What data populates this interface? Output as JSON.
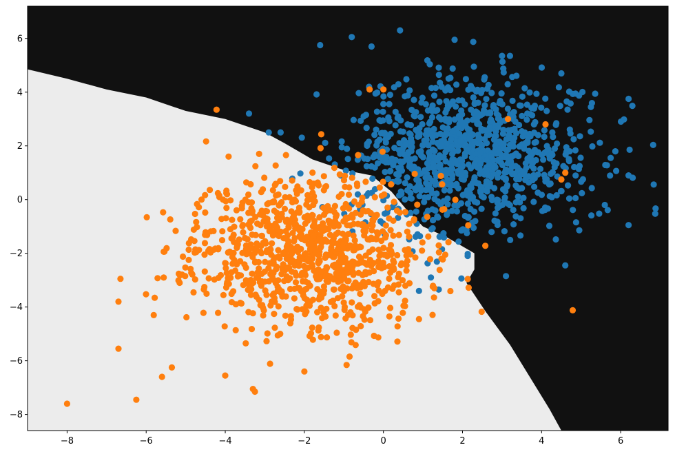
{
  "chart_data": {
    "type": "scatter",
    "title": "",
    "xlabel": "",
    "ylabel": "",
    "xlim": [
      -9.0,
      7.2
    ],
    "ylim": [
      -8.6,
      7.2
    ],
    "x_ticks": [
      -8,
      -6,
      -4,
      -2,
      0,
      2,
      4,
      6
    ],
    "y_ticks": [
      -8,
      -6,
      -4,
      -2,
      0,
      2,
      4,
      6
    ],
    "grid": false,
    "legend": "none",
    "background": {
      "description": "decision regions",
      "dark_region_color": "#111111",
      "light_region_color": "#ececec",
      "boundary": [
        [
          -9.0,
          4.85
        ],
        [
          -8.0,
          4.5
        ],
        [
          -7.0,
          4.1
        ],
        [
          -6.0,
          3.8
        ],
        [
          -5.0,
          3.3
        ],
        [
          -4.0,
          3.0
        ],
        [
          -3.0,
          2.5
        ],
        [
          -2.5,
          2.1
        ],
        [
          -1.8,
          1.5
        ],
        [
          -1.0,
          1.1
        ],
        [
          -0.3,
          0.9
        ],
        [
          0.2,
          0.3
        ],
        [
          0.6,
          -0.4
        ],
        [
          1.0,
          -1.0
        ],
        [
          1.6,
          -1.4
        ],
        [
          2.3,
          -2.0
        ],
        [
          2.3,
          -2.6
        ],
        [
          2.1,
          -3.1
        ],
        [
          2.6,
          -4.2
        ],
        [
          3.2,
          -5.4
        ],
        [
          3.7,
          -6.6
        ],
        [
          4.2,
          -7.8
        ],
        [
          4.5,
          -8.6
        ]
      ]
    },
    "series": [
      {
        "color": "#1f77b4",
        "center": [
          2.2,
          1.6
        ],
        "spread": [
          1.5,
          1.4
        ],
        "count": 1000,
        "seed": 7,
        "points": [
          [
            0.42,
            6.3
          ],
          [
            -0.8,
            6.05
          ],
          [
            1.8,
            5.95
          ],
          [
            -1.6,
            5.75
          ],
          [
            -0.3,
            5.7
          ],
          [
            3.0,
            5.35
          ],
          [
            3.2,
            5.35
          ],
          [
            -3.4,
            3.2
          ],
          [
            1.2,
            -2.9
          ],
          [
            1.4,
            -3.35
          ],
          [
            0.9,
            -3.4
          ],
          [
            3.1,
            -2.85
          ],
          [
            4.6,
            -2.45
          ],
          [
            -2.9,
            2.5
          ],
          [
            -2.6,
            2.5
          ],
          [
            6.2,
            3.75
          ],
          [
            6.2,
            0.9
          ],
          [
            6.2,
            -0.95
          ],
          [
            4.5,
            4.7
          ],
          [
            5.6,
            -0.2
          ]
        ]
      },
      {
        "color": "#ff7f0e",
        "center": [
          -1.9,
          -1.9
        ],
        "spread": [
          1.45,
          1.4
        ],
        "count": 1000,
        "seed": 11,
        "points": [
          [
            -8.0,
            -7.6
          ],
          [
            -6.25,
            -7.45
          ],
          [
            -6.7,
            -5.55
          ],
          [
            -6.7,
            -3.8
          ],
          [
            -6.65,
            -2.95
          ],
          [
            -3.3,
            -7.05
          ],
          [
            -3.25,
            -7.15
          ],
          [
            -2.0,
            -6.4
          ],
          [
            -5.6,
            -6.6
          ],
          [
            -5.35,
            -6.25
          ],
          [
            -4.6,
            0.0
          ],
          [
            4.1,
            2.8
          ],
          [
            4.5,
            0.75
          ],
          [
            4.6,
            1.0
          ],
          [
            0.0,
            4.1
          ],
          [
            -0.35,
            4.1
          ],
          [
            3.15,
            3.0
          ],
          [
            0.15,
            -4.35
          ],
          [
            0.9,
            -4.45
          ],
          [
            -4.0,
            -6.55
          ]
        ]
      }
    ]
  }
}
